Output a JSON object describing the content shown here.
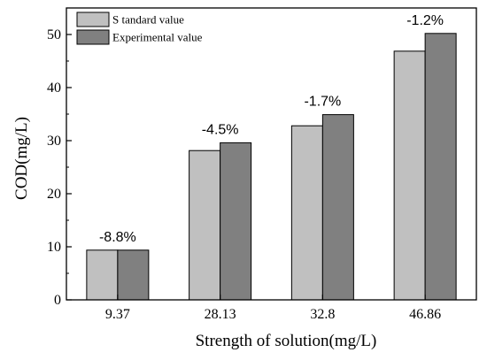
{
  "chart_data": {
    "type": "bar",
    "xlabel": "Strength of solution(mg/L)",
    "ylabel": "COD(mg/L)",
    "categories": [
      "9.37",
      "28.13",
      "32.8",
      "46.86"
    ],
    "ylim": [
      0,
      55
    ],
    "yticks": [
      0,
      10,
      20,
      30,
      40,
      50
    ],
    "series": [
      {
        "name": "S tandard value",
        "values": [
          9.37,
          28.13,
          32.8,
          46.86
        ],
        "color": "#c0c0c0"
      },
      {
        "name": "Experimental value",
        "values": [
          9.37,
          29.6,
          34.9,
          50.2
        ],
        "color": "#808080"
      }
    ],
    "data_labels": [
      "-8.8%",
      "-4.5%",
      "-1.7%",
      "-1.2%"
    ],
    "legend_position": "top-left",
    "grid": false
  }
}
